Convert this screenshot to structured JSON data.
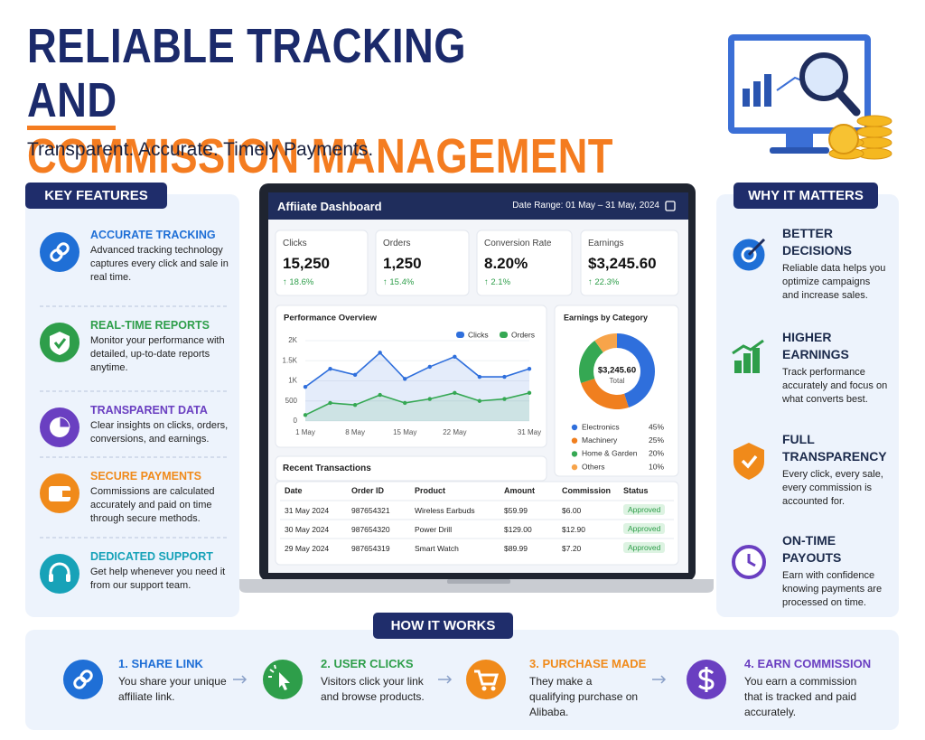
{
  "header": {
    "title_line1": "RELIABLE TRACKING",
    "title_line2_start": "AND",
    "title_line2_highlight": "COMMISSION MANAGEMENT",
    "subtitle": "Transparent. Accurate. Timely Payments."
  },
  "key_features": {
    "heading": "KEY FEATURES",
    "items": [
      {
        "title": "ACCURATE TRACKING",
        "text": "Advanced tracking technology captures every click and sale in real time.",
        "color": "#1f6fd6"
      },
      {
        "title": "REAL-TIME REPORTS",
        "text": "Monitor your performance with detailed, up-to-date reports anytime.",
        "color": "#2e9e4a"
      },
      {
        "title": "TRANSPARENT DATA",
        "text": "Clear insights on clicks, orders, conversions, and earnings.",
        "color": "#6a3fc1"
      },
      {
        "title": "SECURE PAYMENTS",
        "text": "Commissions are calculated accurately and paid on time through secure methods.",
        "color": "#f08a1a"
      },
      {
        "title": "DEDICATED SUPPORT",
        "text": "Get help whenever you need it from our support team.",
        "color": "#17a2b8"
      }
    ]
  },
  "dashboard": {
    "title": "Affiiate Dashboard",
    "date_range": "Date Range: 01 May – 31 May, 2024",
    "stats": [
      {
        "label": "Clicks",
        "value": "15,250",
        "change": "↑ 18.6%"
      },
      {
        "label": "Orders",
        "value": "1,250",
        "change": "↑ 15.4%"
      },
      {
        "label": "Conversion Rate",
        "value": "8.20%",
        "change": "↑ 2.1%"
      },
      {
        "label": "Earnings",
        "value": "$3,245.60",
        "change": "↑ 22.3%"
      }
    ],
    "transactions": {
      "title": "Recent Transactions",
      "columns": [
        "Date",
        "Order ID",
        "Product",
        "Amount",
        "Commission",
        "Status"
      ],
      "rows": [
        [
          "31 May 2024",
          "987654321",
          "Wireless Earbuds",
          "$59.99",
          "$6.00",
          "Approved"
        ],
        [
          "30 May 2024",
          "987654320",
          "Power Drill",
          "$129.00",
          "$12.90",
          "Approved"
        ],
        [
          "29 May 2024",
          "987654319",
          "Smart Watch",
          "$89.99",
          "$7.20",
          "Approved"
        ]
      ]
    }
  },
  "chart_data": [
    {
      "type": "line",
      "title": "Performance Overview",
      "categories": [
        "1 May",
        null,
        "8 May",
        null,
        "15 May",
        null,
        "22 May",
        null,
        null,
        "31 May"
      ],
      "series": [
        {
          "name": "Clicks",
          "color": "#2f6fdc",
          "values": [
            850,
            1300,
            1150,
            1700,
            1050,
            1350,
            1600,
            1100,
            1100,
            1300
          ]
        },
        {
          "name": "Orders",
          "color": "#35a853",
          "values": [
            150,
            450,
            400,
            650,
            450,
            550,
            700,
            500,
            550,
            700
          ]
        }
      ],
      "ylim": [
        0,
        2000
      ],
      "yticks": [
        0,
        500,
        {
          "value": 1000,
          "label": "1K"
        },
        {
          "value": 1500,
          "label": "1.5K"
        },
        {
          "value": 2000,
          "label": "2K"
        }
      ],
      "grid": true,
      "legend": "top-right"
    },
    {
      "type": "pie",
      "title": "Earnings by Category",
      "center_value": "$3,245.60",
      "center_label": "Total",
      "categories": [
        "Electronics",
        "Machinery",
        "Home & Garden",
        "Others"
      ],
      "values": [
        45,
        25,
        20,
        10
      ],
      "value_labels": [
        "45%",
        "25%",
        "20%",
        "10%"
      ],
      "colors": [
        "#2f6fdc",
        "#f07f1f",
        "#35a853",
        "#f7a44a"
      ]
    }
  ],
  "why_it_matters": {
    "heading": "WHY IT MATTERS",
    "items": [
      {
        "title": "BETTER DECISIONS",
        "text": "Reliable data helps you optimize campaigns and increase sales."
      },
      {
        "title": "HIGHER EARNINGS",
        "text": "Track performance accurately and focus on what converts best."
      },
      {
        "title": "FULL TRANSPARENCY",
        "text": "Every click, every sale, every commission is accounted for."
      },
      {
        "title": "ON-TIME PAYOUTS",
        "text": "Earn with confidence knowing payments are processed on time."
      }
    ]
  },
  "how_it_works": {
    "heading": "HOW IT WORKS",
    "steps": [
      {
        "title": "1. SHARE LINK",
        "text": "You share your unique affiliate link.",
        "color": "#1f6fd6"
      },
      {
        "title": "2. USER CLICKS",
        "text": "Visitors click your link and browse products.",
        "color": "#2e9e4a"
      },
      {
        "title": "3. PURCHASE MADE",
        "text": "They make a qualifying purchase on Alibaba.",
        "color": "#f08a1a"
      },
      {
        "title": "4. EARN COMMISSION",
        "text": "You earn a commission that is tracked and paid accurately.",
        "color": "#6a3fc1"
      }
    ]
  }
}
